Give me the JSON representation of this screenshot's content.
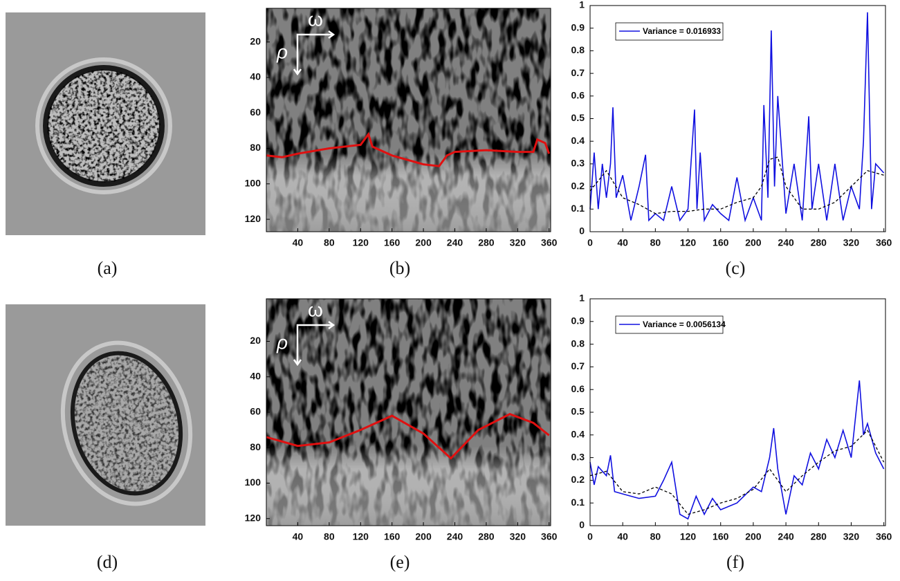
{
  "captions": [
    "(a)",
    "(b)",
    "(c)",
    "(d)",
    "(e)",
    "(f)"
  ],
  "chart_data": [
    {
      "type": "line",
      "yreverse": true,
      "annotations": [
        "ω",
        "ρ"
      ],
      "xlim": [
        0,
        362
      ],
      "ylim": [
        1,
        127
      ],
      "xticks": [
        40,
        80,
        120,
        160,
        200,
        240,
        280,
        320,
        360
      ],
      "yticks": [
        20,
        40,
        60,
        80,
        100,
        120
      ],
      "series": [
        {
          "color": "#e01010",
          "x": [
            0,
            20,
            40,
            80,
            120,
            130,
            135,
            160,
            200,
            220,
            230,
            240,
            280,
            320,
            340,
            345,
            355,
            360
          ],
          "values": [
            84,
            85,
            83,
            80,
            78,
            72,
            79,
            84,
            89,
            90,
            84,
            82,
            81,
            82,
            82,
            75,
            77,
            83
          ]
        }
      ]
    },
    {
      "type": "line",
      "grid": false,
      "legend": "upper left",
      "xlim": [
        0,
        362
      ],
      "ylim": [
        0,
        1
      ],
      "xticks": [
        0,
        40,
        80,
        120,
        160,
        200,
        240,
        280,
        320,
        360
      ],
      "yticks": [
        0,
        0.1,
        0.2,
        0.3,
        0.4,
        0.5,
        0.6,
        0.7,
        0.8,
        0.9,
        1
      ],
      "series": [
        {
          "name": "Variance = 0.016933",
          "color": "#1010e0",
          "x": [
            0,
            5,
            10,
            15,
            20,
            25,
            28,
            32,
            40,
            50,
            60,
            68,
            72,
            80,
            90,
            100,
            110,
            120,
            128,
            131,
            135,
            140,
            150,
            160,
            170,
            180,
            190,
            200,
            210,
            213,
            218,
            222,
            226,
            230,
            240,
            250,
            260,
            268,
            272,
            280,
            290,
            300,
            310,
            320,
            330,
            335,
            340,
            345,
            350,
            360
          ],
          "values": [
            0.1,
            0.35,
            0.1,
            0.3,
            0.15,
            0.3,
            0.55,
            0.15,
            0.25,
            0.05,
            0.2,
            0.34,
            0.05,
            0.08,
            0.05,
            0.2,
            0.05,
            0.1,
            0.54,
            0.1,
            0.35,
            0.05,
            0.12,
            0.08,
            0.05,
            0.24,
            0.05,
            0.15,
            0.05,
            0.56,
            0.15,
            0.89,
            0.2,
            0.6,
            0.08,
            0.3,
            0.05,
            0.51,
            0.1,
            0.3,
            0.05,
            0.3,
            0.05,
            0.2,
            0.1,
            0.4,
            0.97,
            0.1,
            0.3,
            0.26
          ]
        },
        {
          "color": "#000000",
          "dash": true,
          "x": [
            0,
            20,
            40,
            60,
            80,
            100,
            120,
            140,
            160,
            180,
            200,
            210,
            220,
            230,
            240,
            260,
            280,
            300,
            320,
            340,
            360
          ],
          "values": [
            0.18,
            0.27,
            0.15,
            0.12,
            0.08,
            0.09,
            0.09,
            0.1,
            0.1,
            0.13,
            0.15,
            0.2,
            0.32,
            0.33,
            0.2,
            0.1,
            0.1,
            0.13,
            0.2,
            0.27,
            0.25
          ]
        }
      ]
    },
    {
      "type": "line",
      "yreverse": true,
      "annotations": [
        "ω",
        "ρ"
      ],
      "xlim": [
        0,
        362
      ],
      "ylim": [
        -4,
        124
      ],
      "xticks": [
        40,
        80,
        120,
        160,
        200,
        240,
        280,
        320,
        360
      ],
      "yticks": [
        20,
        40,
        60,
        80,
        100,
        120
      ],
      "series": [
        {
          "color": "#e01010",
          "x": [
            0,
            40,
            80,
            120,
            160,
            200,
            235,
            270,
            310,
            340,
            360
          ],
          "values": [
            74,
            79,
            77,
            70,
            62,
            72,
            86,
            70,
            61,
            66,
            73
          ]
        }
      ]
    },
    {
      "type": "line",
      "grid": false,
      "legend": "upper left",
      "xlim": [
        0,
        362
      ],
      "ylim": [
        0,
        1
      ],
      "xticks": [
        0,
        40,
        80,
        120,
        160,
        200,
        240,
        280,
        320,
        360
      ],
      "yticks": [
        0,
        0.1,
        0.2,
        0.3,
        0.4,
        0.5,
        0.6,
        0.7,
        0.8,
        0.9,
        1
      ],
      "series": [
        {
          "name": "Variance = 0.0056134",
          "color": "#1010e0",
          "x": [
            0,
            5,
            10,
            20,
            25,
            30,
            40,
            60,
            80,
            90,
            100,
            110,
            120,
            130,
            140,
            150,
            160,
            180,
            200,
            210,
            220,
            225,
            230,
            240,
            250,
            260,
            270,
            280,
            290,
            300,
            310,
            320,
            330,
            335,
            340,
            350,
            360
          ],
          "values": [
            0.28,
            0.18,
            0.26,
            0.22,
            0.31,
            0.15,
            0.14,
            0.12,
            0.13,
            0.2,
            0.28,
            0.05,
            0.03,
            0.13,
            0.05,
            0.12,
            0.07,
            0.1,
            0.17,
            0.15,
            0.3,
            0.43,
            0.25,
            0.05,
            0.22,
            0.18,
            0.32,
            0.25,
            0.38,
            0.3,
            0.42,
            0.3,
            0.64,
            0.4,
            0.45,
            0.32,
            0.25
          ]
        },
        {
          "color": "#000000",
          "dash": true,
          "x": [
            0,
            20,
            40,
            60,
            80,
            100,
            120,
            140,
            160,
            180,
            200,
            220,
            240,
            260,
            280,
            300,
            320,
            340,
            360
          ],
          "values": [
            0.22,
            0.24,
            0.15,
            0.14,
            0.17,
            0.14,
            0.05,
            0.07,
            0.1,
            0.12,
            0.16,
            0.25,
            0.15,
            0.22,
            0.28,
            0.33,
            0.35,
            0.42,
            0.28
          ]
        }
      ]
    }
  ]
}
